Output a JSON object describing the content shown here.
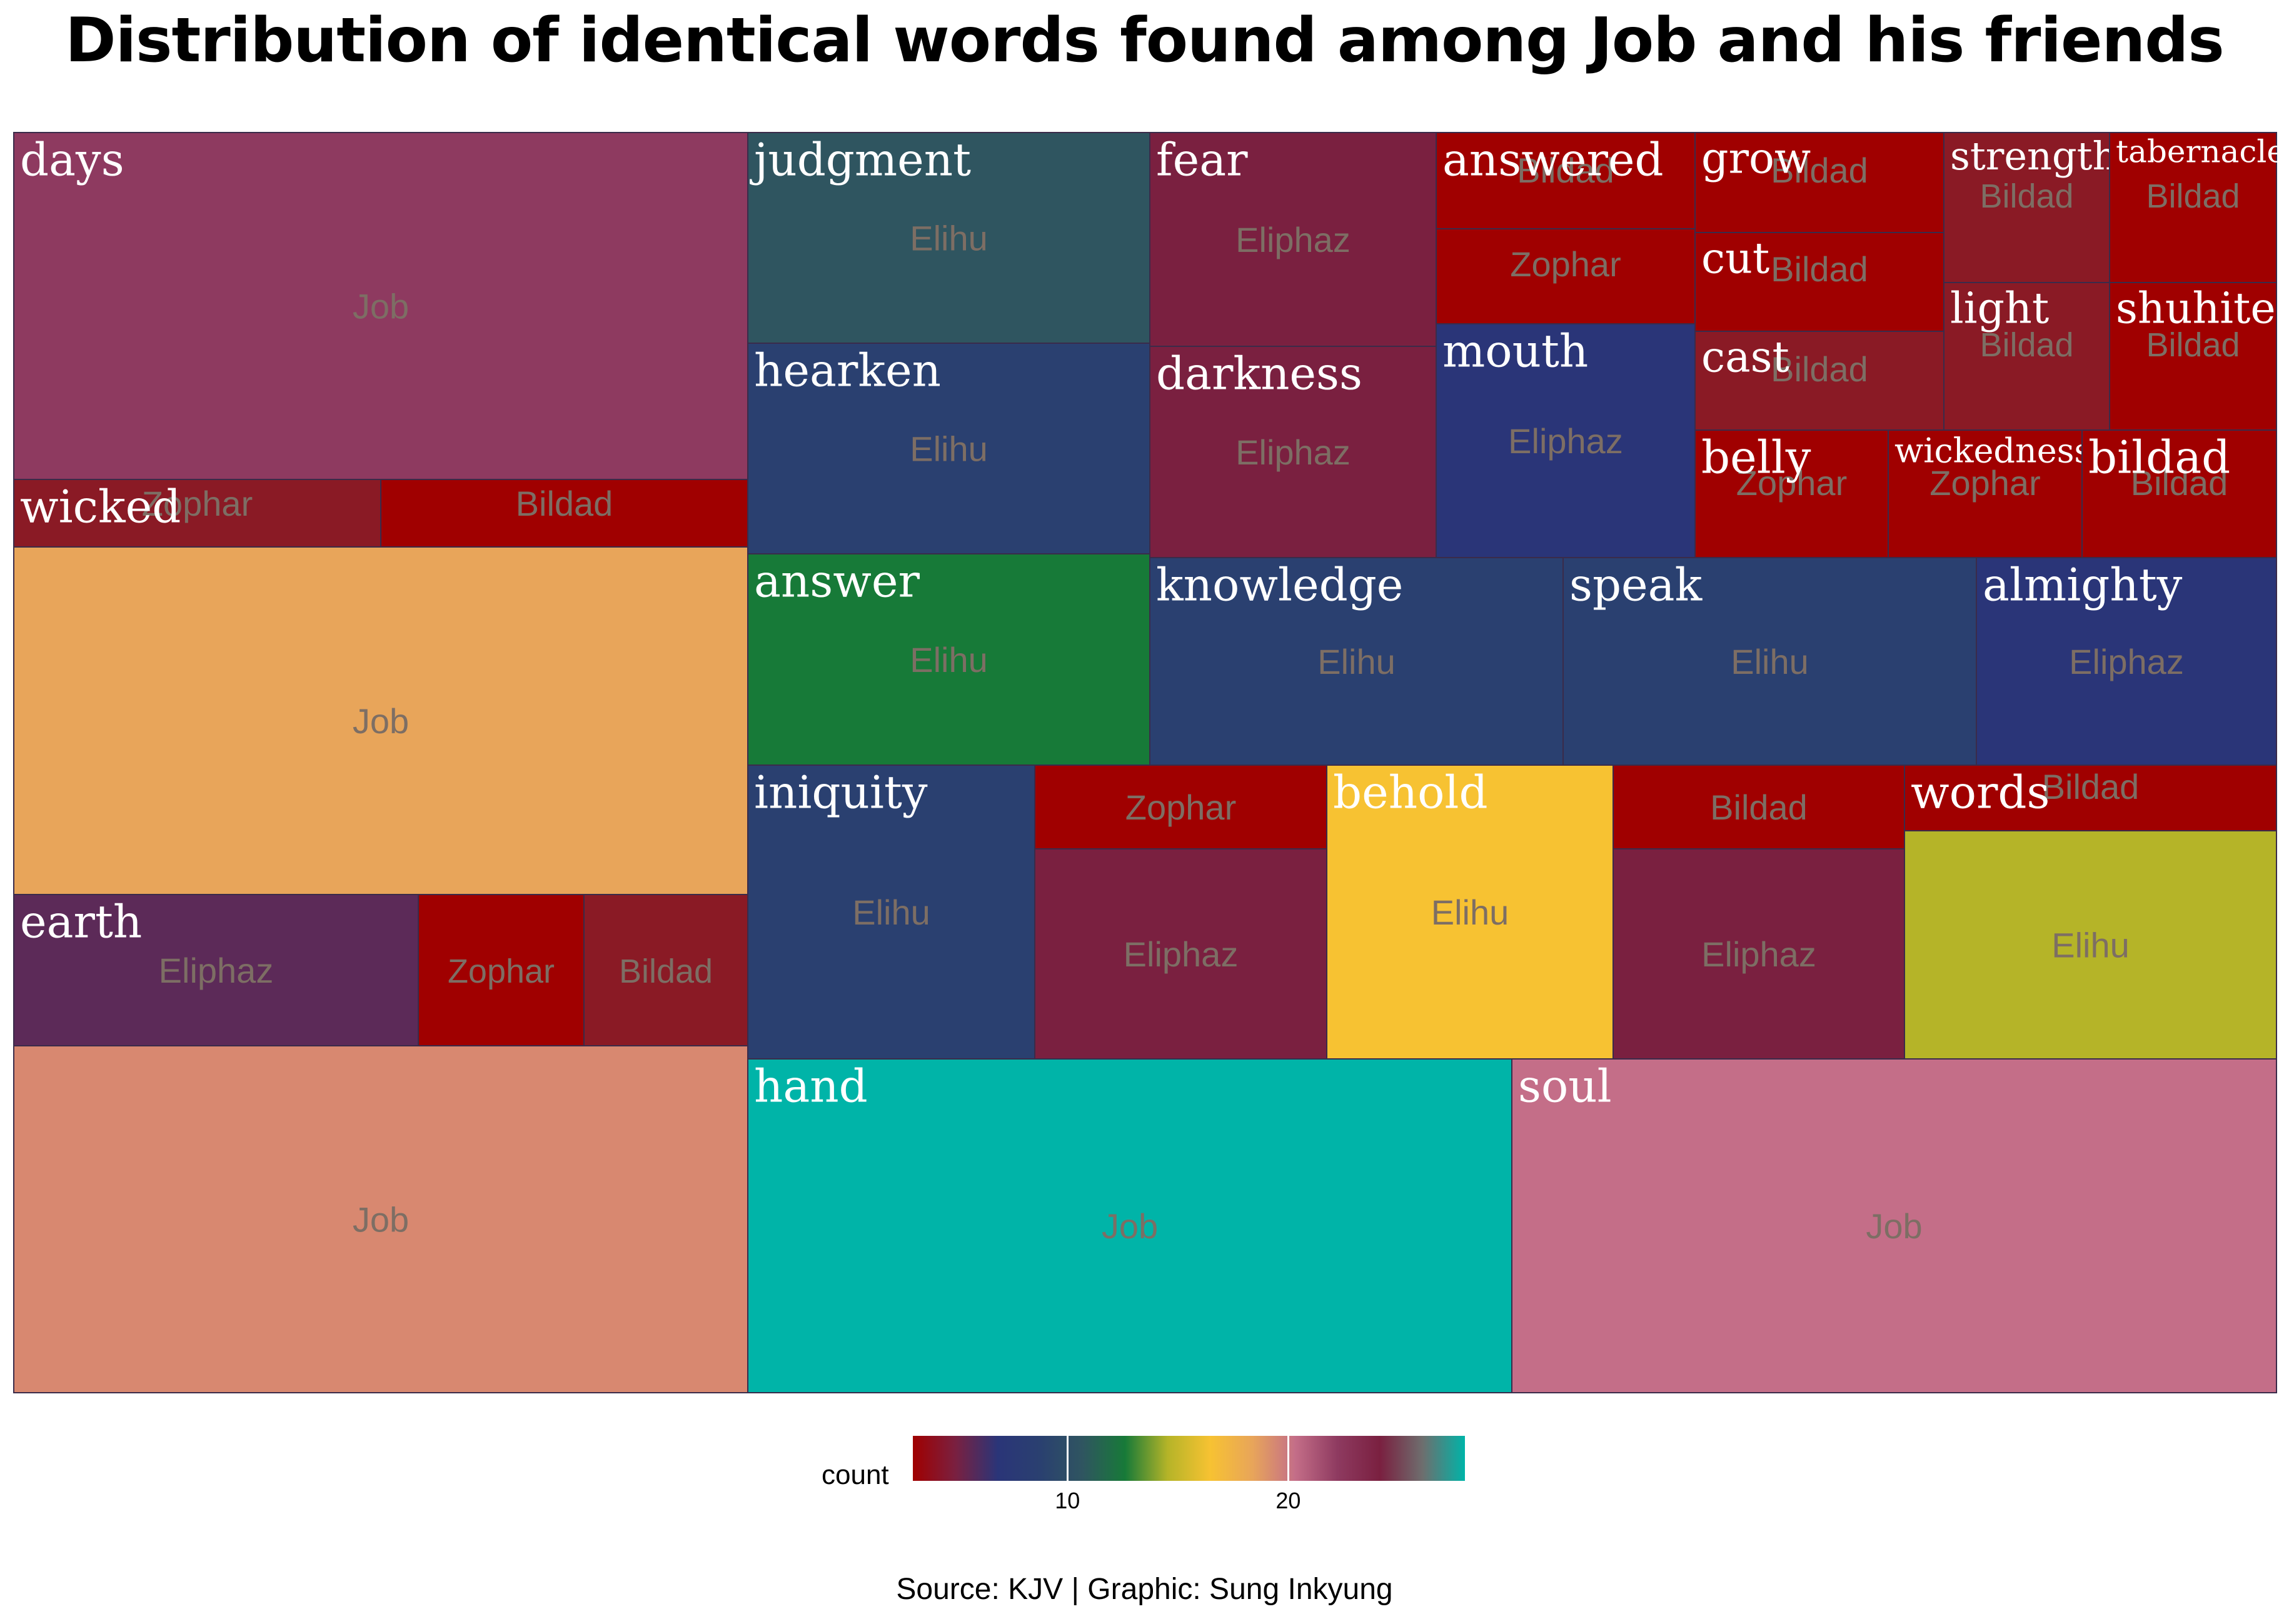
{
  "title": "Distribution of identical words found among Job and his friends",
  "caption": "Source: KJV | Graphic: Sung Inkyung",
  "legend": {
    "title": "count",
    "ticks": [
      10,
      20
    ],
    "range": [
      3,
      28
    ],
    "gradient": [
      "#a00000",
      "#7a2040",
      "#2a3578",
      "#2a4070",
      "#2f5560",
      "#177a38",
      "#b5b428",
      "#f7c232",
      "#e8a55a",
      "#c46e88",
      "#8e3a60",
      "#7a2040",
      "#6e6e6e",
      "#00b4a8"
    ]
  },
  "chart_data": {
    "type": "treemap",
    "title": "Distribution of identical words found among Job and his friends",
    "color_scale": "count",
    "groups": [
      {
        "word": "days",
        "cells": [
          {
            "speaker": "Job",
            "count": 24,
            "color": "#8e3a60"
          }
        ]
      },
      {
        "word": "wicked",
        "cells": [
          {
            "speaker": "Zophar",
            "count": 4,
            "color": "#8a1a25"
          },
          {
            "speaker": "Bildad",
            "count": 4,
            "color": "#a00000"
          }
        ]
      },
      {
        "word": "",
        "cells": [
          {
            "speaker": "Job",
            "count": 24,
            "color": "#e8a55a"
          }
        ]
      },
      {
        "word": "earth",
        "cells": [
          {
            "speaker": "Eliphaz",
            "count": 9,
            "color": "#5c2a58"
          },
          {
            "speaker": "Zophar",
            "count": 4,
            "color": "#a00000"
          },
          {
            "speaker": "Bildad",
            "count": 4,
            "color": "#8a1a25"
          }
        ]
      },
      {
        "word": "",
        "cells": [
          {
            "speaker": "Job",
            "count": 24,
            "color": "#d88870"
          }
        ]
      },
      {
        "word": "judgment",
        "cells": [
          {
            "speaker": "Elihu",
            "count": 8,
            "color": "#2f5560"
          }
        ]
      },
      {
        "word": "hearken",
        "cells": [
          {
            "speaker": "Elihu",
            "count": 8,
            "color": "#2a4070"
          }
        ]
      },
      {
        "word": "answer",
        "cells": [
          {
            "speaker": "Elihu",
            "count": 8,
            "color": "#177a38"
          }
        ]
      },
      {
        "word": "fear",
        "cells": [
          {
            "speaker": "Eliphaz",
            "count": 6,
            "color": "#7a2040"
          }
        ]
      },
      {
        "word": "darkness",
        "cells": [
          {
            "speaker": "Eliphaz",
            "count": 6,
            "color": "#7a2040"
          }
        ]
      },
      {
        "word": "answered",
        "cells": [
          {
            "speaker": "Bildad",
            "count": 3,
            "color": "#a00000"
          },
          {
            "speaker": "Zophar",
            "count": 3,
            "color": "#a00000"
          }
        ]
      },
      {
        "word": "mouth",
        "cells": [
          {
            "speaker": "Eliphaz",
            "count": 5,
            "color": "#2a3578"
          }
        ]
      },
      {
        "word": "grow",
        "cells": [
          {
            "speaker": "Bildad",
            "count": 3,
            "color": "#a00000"
          }
        ]
      },
      {
        "word": "cut",
        "cells": [
          {
            "speaker": "Bildad",
            "count": 3,
            "color": "#a00000"
          }
        ]
      },
      {
        "word": "cast",
        "cells": [
          {
            "speaker": "Bildad",
            "count": 3,
            "color": "#8a1a25"
          }
        ]
      },
      {
        "word": "strength",
        "cells": [
          {
            "speaker": "Bildad",
            "count": 3,
            "color": "#8a1a25"
          }
        ]
      },
      {
        "word": "light",
        "cells": [
          {
            "speaker": "Bildad",
            "count": 3,
            "color": "#8a1a25"
          }
        ]
      },
      {
        "word": "tabernacle",
        "cells": [
          {
            "speaker": "Bildad",
            "count": 3,
            "color": "#a00000"
          }
        ]
      },
      {
        "word": "shuhite",
        "cells": [
          {
            "speaker": "Bildad",
            "count": 3,
            "color": "#a00000"
          }
        ]
      },
      {
        "word": "belly",
        "cells": [
          {
            "speaker": "Zophar",
            "count": 3,
            "color": "#a00000"
          }
        ]
      },
      {
        "word": "wickedness",
        "cells": [
          {
            "speaker": "Zophar",
            "count": 3,
            "color": "#a00000"
          }
        ]
      },
      {
        "word": "bildad",
        "cells": [
          {
            "speaker": "Bildad",
            "count": 3,
            "color": "#a00000"
          }
        ]
      },
      {
        "word": "knowledge",
        "cells": [
          {
            "speaker": "Elihu",
            "count": 8,
            "color": "#2a4070"
          }
        ]
      },
      {
        "word": "speak",
        "cells": [
          {
            "speaker": "Elihu",
            "count": 8,
            "color": "#2a4070"
          }
        ]
      },
      {
        "word": "almighty",
        "cells": [
          {
            "speaker": "Eliphaz",
            "count": 6,
            "color": "#2a3578"
          }
        ]
      },
      {
        "word": "iniquity",
        "cells": [
          {
            "speaker": "Elihu",
            "count": 8,
            "color": "#2a4070"
          }
        ]
      },
      {
        "word": "",
        "cells": [
          {
            "speaker": "Zophar",
            "count": 3,
            "color": "#a00000"
          },
          {
            "speaker": "Eliphaz",
            "count": 6,
            "color": "#7a2040"
          }
        ]
      },
      {
        "word": "behold",
        "cells": [
          {
            "speaker": "Elihu",
            "count": 15,
            "color": "#f7c232"
          }
        ]
      },
      {
        "word": "",
        "cells": [
          {
            "speaker": "Bildad",
            "count": 3,
            "color": "#a00000"
          },
          {
            "speaker": "Eliphaz",
            "count": 6,
            "color": "#7a2040"
          }
        ]
      },
      {
        "word": "words",
        "cells": [
          {
            "speaker": "Bildad",
            "count": 3,
            "color": "#a00000"
          },
          {
            "speaker": "Elihu",
            "count": 13,
            "color": "#b5b428"
          }
        ]
      },
      {
        "word": "hand",
        "cells": [
          {
            "speaker": "Job",
            "count": 28,
            "color": "#00b4a8"
          }
        ]
      },
      {
        "word": "soul",
        "cells": [
          {
            "speaker": "Job",
            "count": 21,
            "color": "#c46e88"
          }
        ]
      }
    ]
  }
}
